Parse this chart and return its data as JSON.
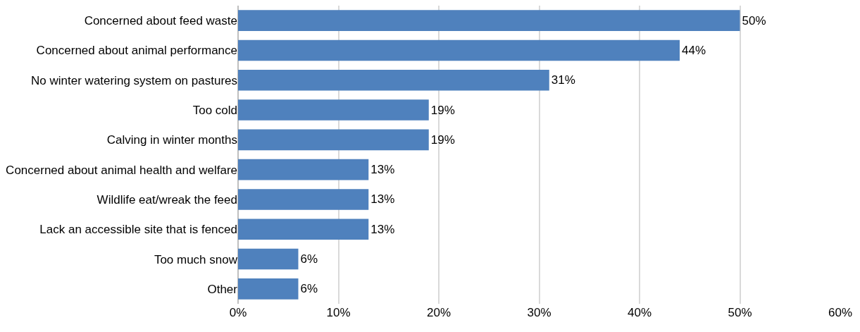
{
  "chart_data": {
    "type": "bar",
    "orientation": "horizontal",
    "categories": [
      "Concerned about feed waste",
      "Concerned about animal performance",
      "No winter watering system on pastures",
      "Too cold",
      "Calving in winter months",
      "Concerned about animal health and welfare",
      "Wildlife eat/wreak the feed",
      "Lack an accessible site that is fenced",
      "Too much snow",
      "Other"
    ],
    "values": [
      50,
      44,
      31,
      19,
      19,
      13,
      13,
      13,
      6,
      6
    ],
    "value_labels": [
      "50%",
      "44%",
      "31%",
      "19%",
      "19%",
      "13%",
      "13%",
      "13%",
      "6%",
      "6%"
    ],
    "color": "#4f81bd",
    "xlim": [
      0,
      60
    ],
    "xticks": [
      {
        "value": 0,
        "label": "0%"
      },
      {
        "value": 10,
        "label": "10%"
      },
      {
        "value": 20,
        "label": "20%"
      },
      {
        "value": 30,
        "label": "30%"
      },
      {
        "value": 40,
        "label": "40%"
      },
      {
        "value": 50,
        "label": "50%"
      },
      {
        "value": 60,
        "label": "60%"
      }
    ],
    "grid": "x",
    "legend": false
  }
}
